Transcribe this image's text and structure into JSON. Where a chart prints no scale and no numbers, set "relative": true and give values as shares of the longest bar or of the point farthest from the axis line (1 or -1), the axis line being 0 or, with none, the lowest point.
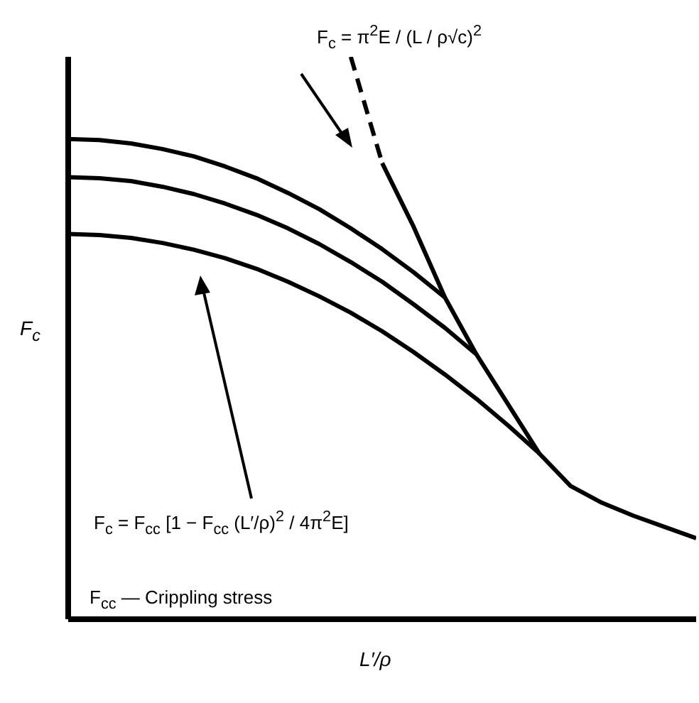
{
  "chart_data": {
    "type": "line",
    "relative": true,
    "xlabel": "L′/ρ",
    "ylabel": "F$_{c}$",
    "categories": [
      null,
      null,
      null,
      null,
      null,
      null,
      null,
      null,
      null,
      null,
      null,
      null,
      null,
      null,
      null,
      null,
      null,
      null,
      null,
      null,
      null
    ],
    "series": [
      {
        "color": "#000000",
        "line_style": "dashed",
        "values": [
          null,
          null,
          null,
          null,
          null,
          null,
          null,
          null,
          null,
          1.0,
          0.811,
          null,
          null,
          null,
          null,
          null,
          null,
          null,
          null,
          null,
          null
        ]
      },
      {
        "color": "#000000",
        "line_style": "solid",
        "values": [
          null,
          null,
          null,
          null,
          null,
          null,
          null,
          null,
          null,
          null,
          0.811,
          0.698,
          0.572,
          0.471,
          0.383,
          0.295,
          0.237,
          0.207,
          0.184,
          0.164,
          0.144
        ]
      },
      {
        "color": "#000000",
        "line_style": "solid",
        "values": [
          0.854,
          0.852,
          0.846,
          0.836,
          0.823,
          0.805,
          0.784,
          0.758,
          0.729,
          0.695,
          0.658,
          0.617,
          0.572,
          null,
          null,
          null,
          null,
          null,
          null,
          null,
          null
        ]
      },
      {
        "color": "#000000",
        "line_style": "solid",
        "values": [
          0.786,
          0.784,
          0.779,
          0.769,
          0.756,
          0.739,
          0.719,
          0.695,
          0.667,
          0.635,
          0.6,
          0.56,
          0.518,
          0.471,
          null,
          null,
          null,
          null,
          null,
          null,
          null
        ]
      },
      {
        "color": "#000000",
        "line_style": "solid",
        "values": [
          0.685,
          0.683,
          0.678,
          0.669,
          0.657,
          0.642,
          0.623,
          0.6,
          0.574,
          0.545,
          0.512,
          0.475,
          0.435,
          0.392,
          0.345,
          0.295,
          null,
          null,
          null,
          null,
          null
        ]
      }
    ],
    "annotations": [
      "F$_{c}$ = π$^{2}$E / (L / ρ√c)$^{2}$",
      "F$_{c}$ = F$_{cc}$ [1 − F$_{cc}$ (L′/ρ)$^{2}$ / 4π$^{2}$E]",
      "F$_{cc}$ — Crippling stress"
    ]
  }
}
